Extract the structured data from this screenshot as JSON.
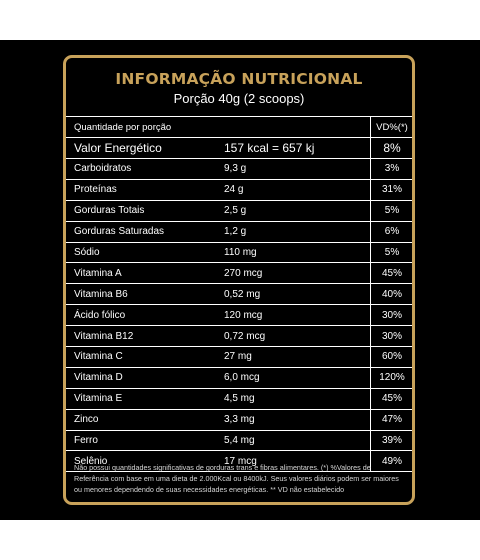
{
  "title": "INFORMAÇÃO NUTRICIONAL",
  "serving": "Porção 40g (2 scoops)",
  "header": {
    "label": "Quantidade por porção",
    "dv": "VD%(*)"
  },
  "rows": [
    {
      "name": "Valor Energético",
      "amount": "157 kcal = 657 kj",
      "dv": "8%"
    },
    {
      "name": "Carboidratos",
      "amount": "9,3 g",
      "dv": "3%"
    },
    {
      "name": "Proteínas",
      "amount": "24 g",
      "dv": "31%"
    },
    {
      "name": "Gorduras Totais",
      "amount": "2,5 g",
      "dv": "5%"
    },
    {
      "name": "Gorduras Saturadas",
      "amount": "1,2 g",
      "dv": "6%"
    },
    {
      "name": "Sódio",
      "amount": "110 mg",
      "dv": "5%"
    },
    {
      "name": "Vitamina A",
      "amount": "270 mcg",
      "dv": "45%"
    },
    {
      "name": "Vitamina B6",
      "amount": "0,52 mg",
      "dv": "40%"
    },
    {
      "name": "Ácido fólico",
      "amount": "120 mcg",
      "dv": "30%"
    },
    {
      "name": "Vitamina B12",
      "amount": "0,72 mcg",
      "dv": "30%"
    },
    {
      "name": "Vitamina C",
      "amount": "27 mg",
      "dv": "60%"
    },
    {
      "name": "Vitamina D",
      "amount": "6,0 mcg",
      "dv": "120%"
    },
    {
      "name": "Vitamina E",
      "amount": "4,5 mg",
      "dv": "45%"
    },
    {
      "name": "Zinco",
      "amount": "3,3 mg",
      "dv": "47%"
    },
    {
      "name": "Ferro",
      "amount": "5,4 mg",
      "dv": "39%"
    },
    {
      "name": "Selênio",
      "amount": "17 mcg",
      "dv": "49%"
    }
  ],
  "footnote": "Não possui quantidades significativas de gorduras trans e fibras alimentares. (*) %Valores de Referência com base em uma dieta de 2.000Kcal ou 8400kJ. Seus valores diários podem ser maiores ou menores dependendo de suas necessidades energéticas. ** VD não estabelecido",
  "colors": {
    "background": "#000000",
    "accent": "#c8a25a",
    "text": "#ffffff"
  }
}
